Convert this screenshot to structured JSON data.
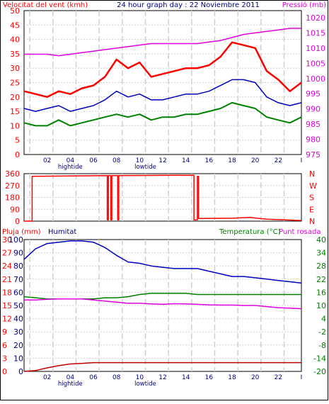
{
  "title": "24 hour graph day : 22 Noviembre 2011",
  "colors": {
    "red": "#ff0000",
    "dark_red": "#c00000",
    "green": "#008000",
    "blue": "#0000c0",
    "magenta": "#e000e0",
    "navy": "#000080",
    "grid": "#d0d0d0",
    "border": "#000000"
  },
  "x_ticks": [
    "02",
    "04",
    "06",
    "08",
    "10",
    "12",
    "14",
    "16",
    "18",
    "20",
    "22",
    "I"
  ],
  "tide_labels": {
    "high": "hightide",
    "low": "lowtide"
  },
  "chart_data": [
    {
      "type": "line",
      "title": "24 hour graph day : 22 Noviembre 2011",
      "left_label": "Velocitat del vent (kmh)",
      "right_label": "Pressió (mb)",
      "ylim_left": [
        0,
        50
      ],
      "ylim_right": [
        975,
        1020
      ],
      "yticks_left": [
        0,
        5,
        10,
        15,
        20,
        25,
        30,
        35,
        40,
        45,
        50
      ],
      "yticks_right": [
        975,
        980,
        985,
        990,
        995,
        1000,
        1005,
        1010,
        1015,
        1020
      ],
      "grid": true,
      "x": [
        0,
        1,
        2,
        3,
        4,
        5,
        6,
        7,
        8,
        9,
        10,
        11,
        12,
        13,
        14,
        15,
        16,
        17,
        18,
        19,
        20,
        21,
        22,
        23,
        24
      ],
      "series": [
        {
          "key": "gust",
          "axis": "left",
          "values": [
            22,
            21,
            20,
            22,
            21,
            23,
            24,
            27,
            33,
            30,
            32,
            27,
            28,
            29,
            30,
            30,
            31,
            34,
            39,
            38,
            37,
            29,
            26,
            22,
            25
          ]
        },
        {
          "key": "avg",
          "axis": "left",
          "values": [
            16,
            15,
            16,
            17,
            15,
            16,
            17,
            19,
            22,
            20,
            21,
            19,
            19,
            20,
            21,
            21,
            22,
            24,
            26,
            26,
            25,
            20,
            18,
            17,
            18
          ]
        },
        {
          "key": "min",
          "axis": "left",
          "values": [
            11,
            10,
            10,
            12,
            10,
            11,
            12,
            13,
            14,
            13,
            14,
            12,
            13,
            13,
            14,
            14,
            15,
            16,
            18,
            17,
            16,
            13,
            12,
            11,
            13
          ]
        },
        {
          "key": "pressure",
          "axis": "right",
          "values": [
            1008,
            1008,
            1008,
            1007.5,
            1008,
            1008.5,
            1009,
            1009.5,
            1010,
            1010.5,
            1011,
            1011.5,
            1011.5,
            1011.5,
            1011.5,
            1011.5,
            1012,
            1012.5,
            1013.5,
            1014.5,
            1015,
            1015.5,
            1016,
            1016.5,
            1016.5
          ]
        }
      ]
    },
    {
      "type": "line",
      "ylim": [
        0,
        360
      ],
      "yticks_left": [
        0,
        90,
        180,
        270,
        360
      ],
      "yticks_right": [
        "N",
        "E",
        "S",
        "W",
        "N"
      ],
      "grid": true,
      "series": [
        {
          "key": "wind_dir",
          "axis": "left",
          "points": [
            [
              0,
              0
            ],
            [
              0.7,
              0
            ],
            [
              0.7,
              340
            ],
            [
              7.2,
              345
            ],
            [
              7.2,
              10
            ],
            [
              7.3,
              10
            ],
            [
              7.3,
              345
            ],
            [
              7.5,
              345
            ],
            [
              7.5,
              10
            ],
            [
              7.6,
              10
            ],
            [
              7.6,
              345
            ],
            [
              8.1,
              345
            ],
            [
              8.1,
              10
            ],
            [
              8.2,
              10
            ],
            [
              8.2,
              345
            ],
            [
              14.7,
              348
            ],
            [
              14.7,
              10
            ],
            [
              15,
              10
            ],
            [
              15,
              340
            ],
            [
              15.1,
              340
            ],
            [
              15.1,
              20
            ],
            [
              18,
              22
            ],
            [
              19.5,
              28
            ],
            [
              21,
              15
            ],
            [
              24,
              5
            ]
          ]
        }
      ]
    },
    {
      "type": "line",
      "left_label_1": "Pluja (mm)",
      "left_label_2": "Humitat",
      "right_label_1": "Temperatura (°C)",
      "right_label_2": "Punt rosada",
      "ylim_rain": [
        0,
        30
      ],
      "ylim_humidity": [
        0,
        100
      ],
      "ylim_temp": [
        -20,
        40
      ],
      "yticks_rain": [
        0,
        3,
        6,
        9,
        12,
        15,
        18,
        21,
        24,
        27,
        30
      ],
      "yticks_humidity": [
        0,
        10,
        20,
        30,
        40,
        50,
        60,
        70,
        80,
        90,
        100
      ],
      "yticks_temp": [
        -20,
        -14,
        -8,
        -2,
        4,
        10,
        16,
        22,
        28,
        34,
        40
      ],
      "grid": true,
      "series": [
        {
          "key": "humidity",
          "axis": "humidity",
          "values": [
            85,
            93,
            97,
            98,
            99,
            99,
            98,
            94,
            88,
            83,
            82,
            80,
            79,
            78,
            78,
            78,
            76,
            74,
            72,
            72,
            71,
            70,
            69,
            68,
            67
          ]
        },
        {
          "key": "temperature",
          "axis": "temp",
          "values": [
            14,
            13.5,
            13,
            13,
            13,
            13,
            13,
            13.5,
            13.5,
            14,
            15,
            15.5,
            15.5,
            15.5,
            15.5,
            15,
            15,
            15,
            15,
            15,
            15,
            15,
            15,
            15,
            15
          ]
        },
        {
          "key": "dew_point",
          "axis": "temp",
          "values": [
            12.5,
            12.5,
            12.8,
            13,
            13,
            13,
            12.5,
            12,
            11.5,
            11,
            11,
            10.7,
            10.5,
            10.8,
            10.7,
            10.5,
            10.3,
            10.2,
            10.2,
            10,
            10,
            9.5,
            9,
            8.8,
            8.5
          ]
        },
        {
          "key": "rain",
          "axis": "rain",
          "values": [
            0,
            0.2,
            0.8,
            1.3,
            1.7,
            1.8,
            2,
            2,
            2,
            2,
            2,
            2,
            2,
            2,
            2,
            2,
            2,
            2,
            2,
            2,
            2,
            2,
            2,
            2,
            2
          ]
        }
      ]
    }
  ]
}
